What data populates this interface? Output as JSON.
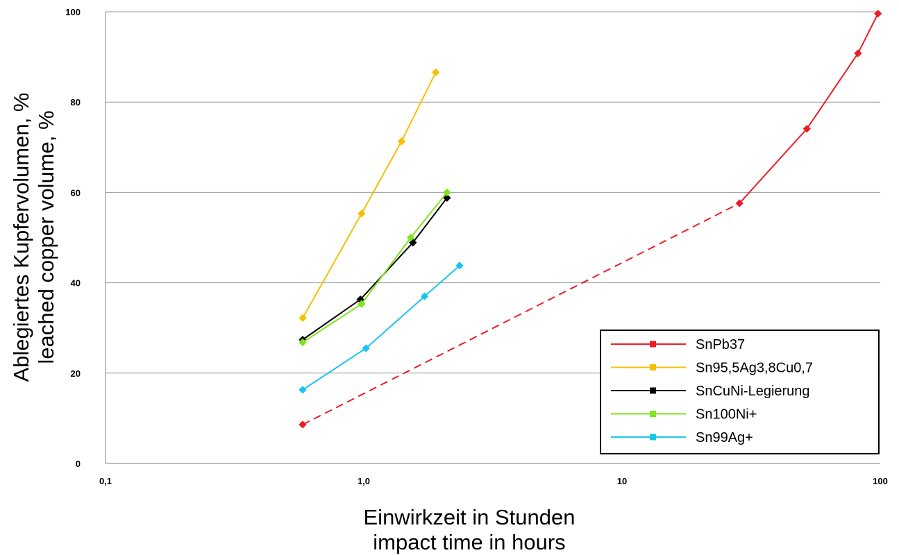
{
  "chart_data": {
    "type": "line",
    "x_scale": "log",
    "xlim": [
      0.1,
      100
    ],
    "ylim": [
      0,
      100
    ],
    "grid": "horizontal",
    "legend_position": "bottom-right",
    "x_ticks": [
      {
        "value": 0.1,
        "label": "0,1"
      },
      {
        "value": 1,
        "label": "1,0"
      },
      {
        "value": 10,
        "label": "10"
      },
      {
        "value": 100,
        "label": "100"
      }
    ],
    "y_ticks": [
      {
        "value": 0,
        "label": "0"
      },
      {
        "value": 20,
        "label": "20"
      },
      {
        "value": 40,
        "label": "40"
      },
      {
        "value": 60,
        "label": "60"
      },
      {
        "value": 80,
        "label": "80"
      },
      {
        "value": 100,
        "label": "100"
      }
    ],
    "xlabel": [
      "Einwirkzeit in Stunden",
      "impact time in hours"
    ],
    "ylabel": [
      "Ablegiertes Kupfervolumen, %",
      "leached copper volume, %"
    ],
    "series": [
      {
        "name": "SnPb37",
        "color": "#ee1c25",
        "points": [
          [
            0.58,
            8.6
          ],
          [
            28.5,
            57.6
          ],
          [
            52,
            74.1
          ],
          [
            82,
            90.8
          ],
          [
            98,
            99.6
          ]
        ],
        "dashed_segments": [
          0
        ]
      },
      {
        "name": "Sn95,5Ag3,8Cu0,7",
        "color": "#f5c000",
        "points": [
          [
            0.58,
            32.2
          ],
          [
            0.98,
            55.3
          ],
          [
            1.4,
            71.3
          ],
          [
            1.9,
            86.6
          ]
        ],
        "dashed_segments": []
      },
      {
        "name": "SnCuNi-Legierung",
        "color": "#000000",
        "points": [
          [
            0.58,
            27.4
          ],
          [
            0.97,
            36.3
          ],
          [
            1.55,
            48.9
          ],
          [
            2.1,
            58.8
          ]
        ],
        "dashed_segments": []
      },
      {
        "name": "Sn100Ni+",
        "color": "#7fe31f",
        "points": [
          [
            0.58,
            26.8
          ],
          [
            0.98,
            35.3
          ],
          [
            1.52,
            50.0
          ],
          [
            2.1,
            60.0
          ]
        ],
        "dashed_segments": []
      },
      {
        "name": "Sn99Ag+",
        "color": "#19c5f0",
        "points": [
          [
            0.58,
            16.3
          ],
          [
            1.02,
            25.5
          ],
          [
            1.72,
            37.0
          ],
          [
            2.35,
            43.8
          ]
        ],
        "dashed_segments": []
      }
    ]
  }
}
